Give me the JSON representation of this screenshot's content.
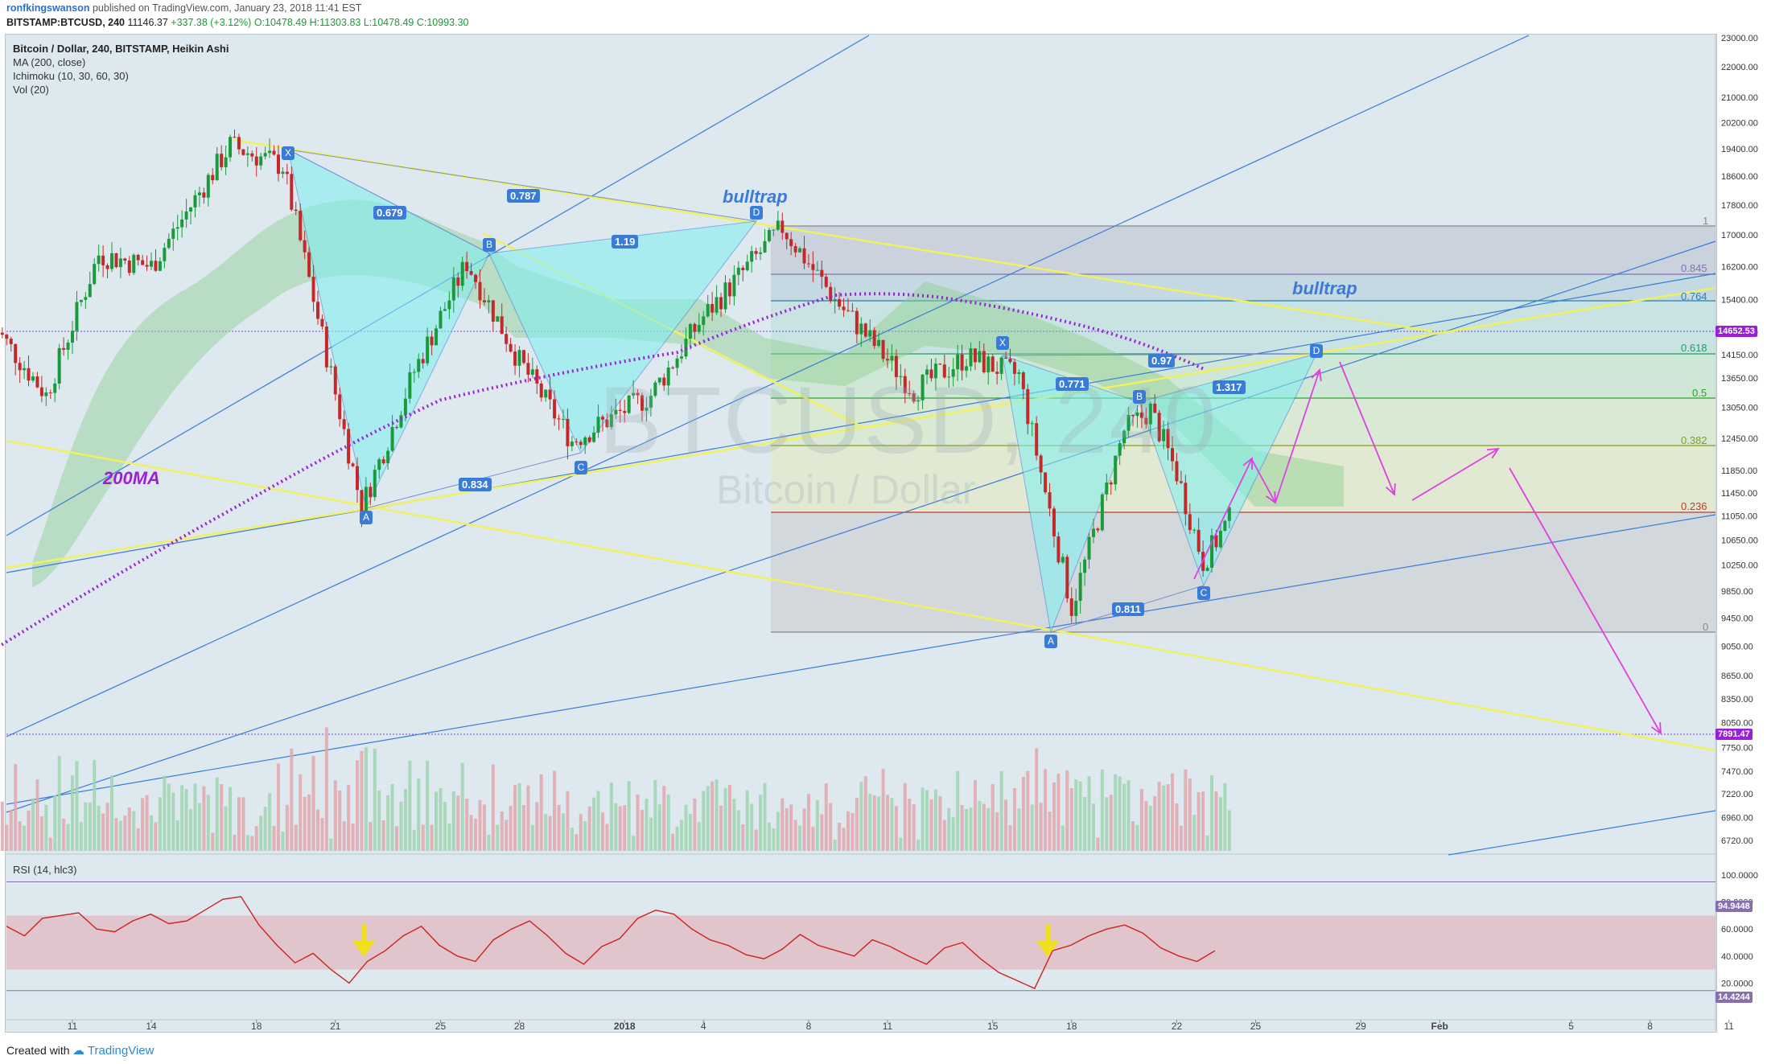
{
  "header": {
    "user": "ronfkingswanson",
    "published": "published on TradingView.com, January 23, 2018 11:41 EST",
    "symbol": "BITSTAMP:BTCUSD, 240",
    "last": "11146.37",
    "change": "+337.38 (+3.12%)",
    "ohlc": "O:10478.49 H:11303.83 L:10478.49 C:10993.30"
  },
  "legend": {
    "title": "Bitcoin / Dollar, 240, BITSTAMP, Heikin Ashi",
    "ma": "MA (200, close)",
    "ichimoku": "Ichimoku (10, 30, 60, 30)",
    "vol": "Vol (20)",
    "rsi": "RSI (14, hlc3)"
  },
  "watermark": {
    "big": "BTCUSD, 240",
    "small": "Bitcoin / Dollar"
  },
  "annotations": {
    "bulltrap_1": "bulltrap",
    "bulltrap_2": "bulltrap",
    "ma_label": "200MA",
    "ratios_left": {
      "xb": "0.679",
      "xd": "0.787",
      "bd": "1.19",
      "ac": "0.834"
    },
    "ratios_right": {
      "xd": "0.97",
      "xb": "0.771",
      "bd": "1.317",
      "ac": "0.811"
    },
    "points": [
      "X",
      "A",
      "B",
      "C",
      "D"
    ]
  },
  "fib": {
    "levels": [
      "1",
      "0.845",
      "0.764",
      "0.618",
      "0.5",
      "0.382",
      "0.236",
      "0"
    ],
    "colors": [
      "#888888",
      "#8a6fb0",
      "#2a7fb0",
      "#20a060",
      "#30a030",
      "#8a9a20",
      "#c0392b",
      "#888888"
    ]
  },
  "price_tags": {
    "upper": "14652.53",
    "lower": "7891.47",
    "rsi_upper": "94.9448",
    "rsi_lower": "14.4244"
  },
  "footer": {
    "created": "Created with",
    "brand": "TradingView"
  },
  "colors": {
    "accent": "#3b7bd8",
    "ma": "#9b1fd8",
    "up": "#1a9a3a",
    "down": "#c22a2a",
    "fib_zone": "#c8d4d8",
    "arrows": "#e040e0",
    "trend_yellow": "#f0f060",
    "pattern_fill": "#7ff0f0"
  },
  "chart_data": [
    {
      "type": "candlestick",
      "title": "Bitcoin / Dollar, 240, BITSTAMP, Heikin Ashi",
      "xlabel": "",
      "ylabel": "",
      "x_ticks": [
        "11",
        "14",
        "18",
        "21",
        "25",
        "28",
        "2018",
        "4",
        "8",
        "11",
        "15",
        "18",
        "22",
        "25",
        "29",
        "Feb",
        "5",
        "8",
        "11"
      ],
      "y_ticks": [
        "23000.00",
        "22000.00",
        "21000.00",
        "20200.00",
        "19400.00",
        "18600.00",
        "17800.00",
        "17000.00",
        "16200.00",
        "15400.00",
        "14650.00",
        "14150.00",
        "13650.00",
        "13050.00",
        "12450.00",
        "11850.00",
        "11450.00",
        "11050.00",
        "10650.00",
        "10250.00",
        "9850.00",
        "9450.00",
        "9050.00",
        "8650.00",
        "8350.00",
        "8050.00",
        "7750.00",
        "7470.00",
        "7220.00",
        "6960.00",
        "6720.00"
      ],
      "ylim": [
        6600,
        23200
      ],
      "log_scale": true,
      "grid": false,
      "series_keypoints": [
        {
          "date": "Dec 8",
          "price": 14800
        },
        {
          "date": "Dec 10",
          "price": 13300
        },
        {
          "date": "Dec 12",
          "price": 16500
        },
        {
          "date": "Dec 14",
          "price": 16200
        },
        {
          "date": "Dec 17",
          "price": 19500
        },
        {
          "date": "Dec 19",
          "price": 18900
        },
        {
          "date": "Dec 22",
          "price": 11200
        },
        {
          "date": "Dec 24",
          "price": 13800
        },
        {
          "date": "Dec 26",
          "price": 16300
        },
        {
          "date": "Dec 28",
          "price": 14000
        },
        {
          "date": "Dec 30",
          "price": 12400
        },
        {
          "date": "Jan 1",
          "price": 13300
        },
        {
          "date": "Jan 3",
          "price": 15000
        },
        {
          "date": "Jan 6",
          "price": 17200
        },
        {
          "date": "Jan 8",
          "price": 15400
        },
        {
          "date": "Jan 11",
          "price": 13400
        },
        {
          "date": "Jan 13",
          "price": 14100
        },
        {
          "date": "Jan 15",
          "price": 13700
        },
        {
          "date": "Jan 17",
          "price": 9600
        },
        {
          "date": "Jan 19",
          "price": 12600
        },
        {
          "date": "Jan 20",
          "price": 13000
        },
        {
          "date": "Jan 21",
          "price": 11800
        },
        {
          "date": "Jan 22",
          "price": 10300
        },
        {
          "date": "Jan 23",
          "price": 10993
        }
      ],
      "ma_200": [
        {
          "date": "Dec 8",
          "price": 9000
        },
        {
          "date": "Dec 18",
          "price": 11400
        },
        {
          "date": "Dec 25",
          "price": 13200
        },
        {
          "date": "Jan 2",
          "price": 14200
        },
        {
          "date": "Jan 8",
          "price": 15500
        },
        {
          "date": "Jan 12",
          "price": 15450
        },
        {
          "date": "Jan 18",
          "price": 14700
        },
        {
          "date": "Jan 22",
          "price": 13850
        }
      ]
    },
    {
      "type": "bar",
      "title": "Vol (20)",
      "y_ticks": [],
      "note": "volume histogram, red for down, green for up"
    },
    {
      "type": "line",
      "title": "RSI (14, hlc3)",
      "y_ticks": [
        "100.0000",
        "80.0000",
        "60.0000",
        "40.0000",
        "20.0000"
      ],
      "ylim": [
        0,
        100
      ],
      "band": [
        30,
        70
      ],
      "values": [
        62,
        55,
        68,
        70,
        72,
        60,
        58,
        66,
        71,
        64,
        66,
        74,
        82,
        84,
        63,
        48,
        35,
        42,
        30,
        20,
        36,
        44,
        55,
        62,
        48,
        40,
        36,
        52,
        60,
        66,
        55,
        42,
        34,
        47,
        53,
        68,
        74,
        71,
        60,
        52,
        48,
        41,
        38,
        45,
        56,
        48,
        44,
        40,
        52,
        47,
        40,
        34,
        46,
        50,
        38,
        28,
        22,
        16,
        44,
        48,
        55,
        60,
        63,
        57,
        46,
        40,
        36,
        44
      ]
    }
  ]
}
